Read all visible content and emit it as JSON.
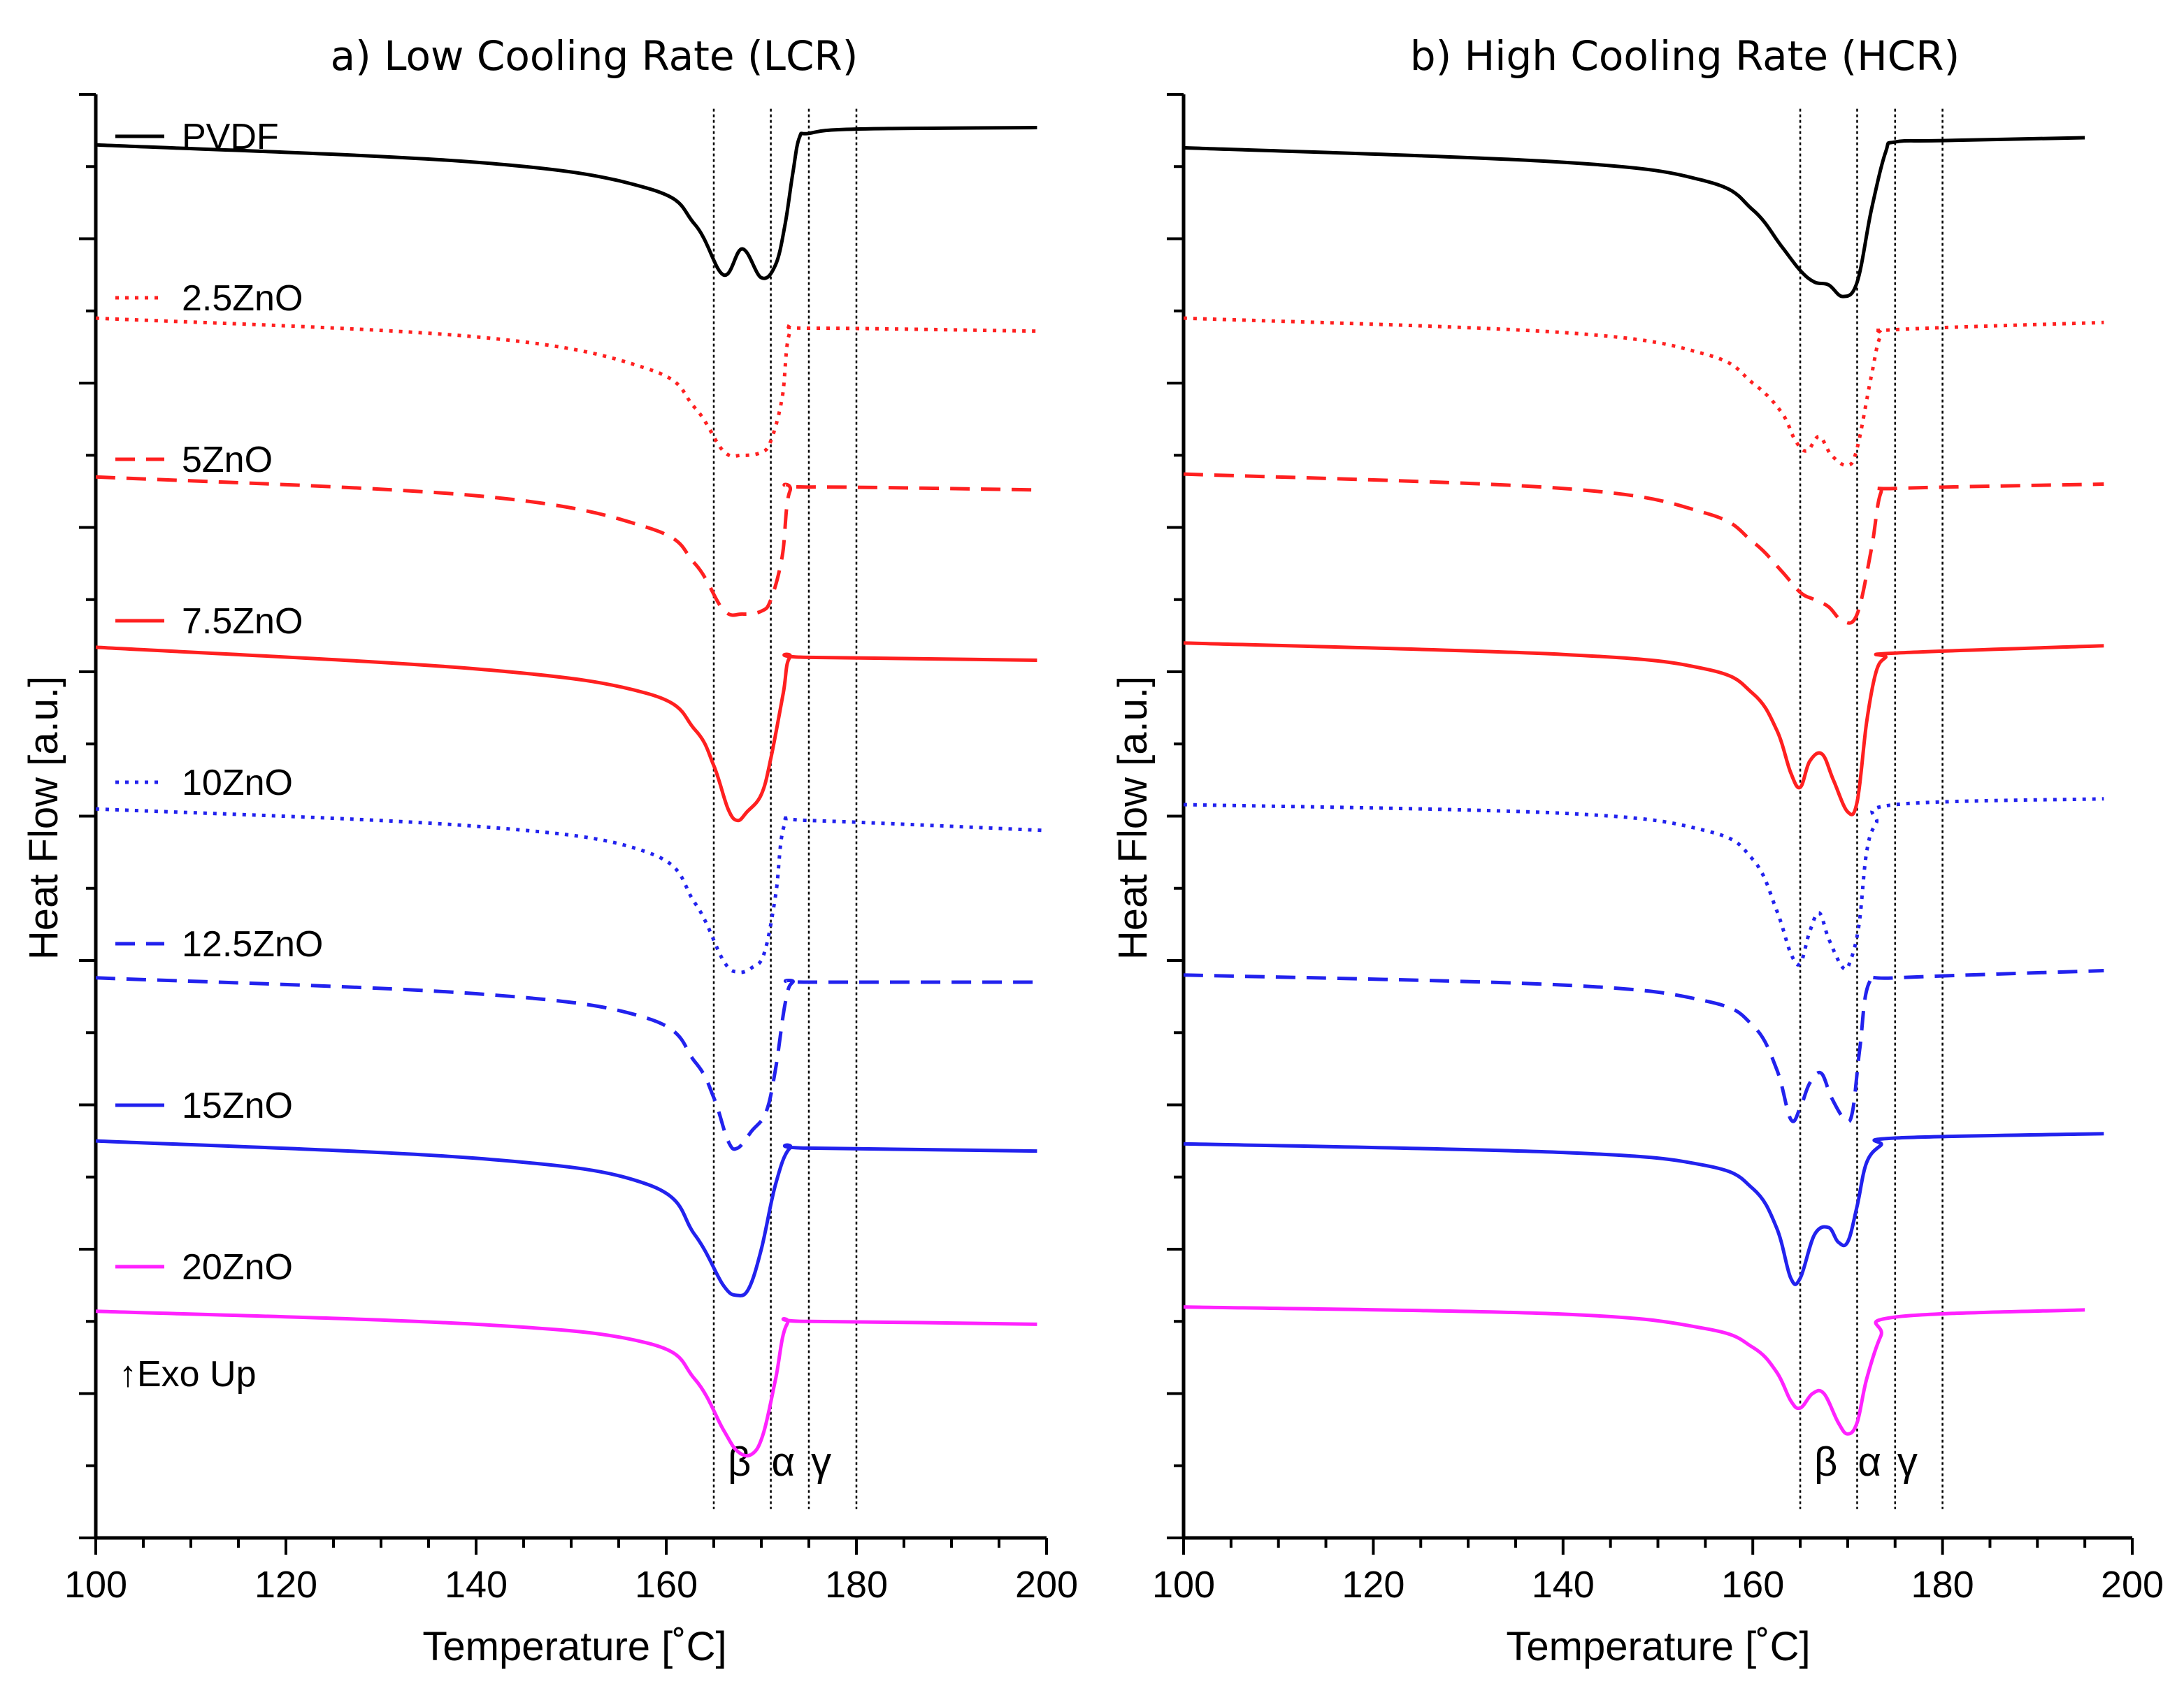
{
  "chart_data": [
    {
      "type": "line",
      "title": "a) Low Cooling Rate (LCR)",
      "xlabel": "Temperature [˚C]",
      "ylabel": "Heat Flow [a.u.]",
      "xlim": [
        100,
        200
      ],
      "ylim": [
        0,
        10
      ],
      "x_ticks": [
        100,
        120,
        140,
        160,
        180,
        200
      ],
      "x_tick_labels": [
        "100",
        "120",
        "140",
        "160",
        "180",
        "200"
      ],
      "y_tick_labels_shown": false,
      "grid": false,
      "annotation": "↑Exo Up",
      "reference_lines": [
        {
          "x": 165,
          "label": ""
        },
        {
          "x": 171,
          "label": ""
        },
        {
          "x": 175,
          "label": ""
        },
        {
          "x": 180,
          "label": ""
        }
      ],
      "phase_labels": [
        {
          "x": 167.7,
          "label": "β"
        },
        {
          "x": 172.3,
          "label": "α"
        },
        {
          "x": 176.3,
          "label": "γ"
        }
      ],
      "series": [
        {
          "name": "PVDF",
          "color": "#000000",
          "style": "solid",
          "end_x": 199,
          "x": [
            100,
            140,
            158,
            163,
            166,
            168,
            170,
            171.5,
            172.5,
            173.3,
            174,
            175,
            180,
            199
          ],
          "y": [
            9.65,
            9.53,
            9.35,
            9.1,
            8.75,
            8.93,
            8.73,
            8.82,
            9.1,
            9.45,
            9.7,
            9.73,
            9.76,
            9.77
          ]
        },
        {
          "name": "2.5ZnO",
          "color": "#ff2020",
          "style": "dotted",
          "end_x": 199,
          "x": [
            100,
            140,
            158,
            163,
            166,
            168,
            170,
            171,
            172.2,
            173,
            175,
            199
          ],
          "y": [
            8.45,
            8.32,
            8.1,
            7.83,
            7.53,
            7.5,
            7.52,
            7.6,
            7.9,
            8.35,
            8.38,
            8.36
          ]
        },
        {
          "name": "5ZnO",
          "color": "#ff2020",
          "style": "dashed",
          "end_x": 199,
          "x": [
            100,
            140,
            158,
            163,
            166,
            168,
            170,
            171,
            172.2,
            173,
            175,
            199
          ],
          "y": [
            7.35,
            7.22,
            7.0,
            6.75,
            6.43,
            6.4,
            6.42,
            6.5,
            6.8,
            7.25,
            7.28,
            7.26
          ]
        },
        {
          "name": "7.5ZnO",
          "color": "#ff2020",
          "style": "solid",
          "end_x": 199,
          "x": [
            100,
            140,
            158,
            163,
            165,
            166.5,
            167.5,
            168.5,
            170,
            171,
            172.3,
            173,
            175,
            199
          ],
          "y": [
            6.17,
            6.02,
            5.85,
            5.6,
            5.35,
            5.05,
            4.97,
            5.03,
            5.15,
            5.4,
            5.85,
            6.1,
            6.1,
            6.08
          ]
        },
        {
          "name": "10ZnO",
          "color": "#2222ee",
          "style": "dotted",
          "end_x": 200,
          "x": [
            100,
            140,
            158,
            163,
            166,
            167.5,
            169,
            170.3,
            171.5,
            172.5,
            175,
            200
          ],
          "y": [
            5.05,
            4.93,
            4.75,
            4.4,
            4.0,
            3.92,
            3.95,
            4.05,
            4.45,
            4.95,
            4.97,
            4.9
          ]
        },
        {
          "name": "12.5ZnO",
          "color": "#2222ee",
          "style": "dashed",
          "end_x": 199,
          "x": [
            100,
            140,
            158,
            163,
            165,
            166.5,
            167.5,
            169,
            170.5,
            171.5,
            172.5,
            173.3,
            175,
            199
          ],
          "y": [
            3.88,
            3.77,
            3.6,
            3.3,
            3.05,
            2.75,
            2.7,
            2.82,
            2.95,
            3.25,
            3.7,
            3.85,
            3.85,
            3.85
          ]
        },
        {
          "name": "15ZnO",
          "color": "#2222ee",
          "style": "solid",
          "end_x": 199,
          "x": [
            100,
            140,
            158,
            163,
            166,
            167.5,
            168.7,
            170,
            171.5,
            173,
            175,
            199
          ],
          "y": [
            2.75,
            2.63,
            2.45,
            2.1,
            1.75,
            1.68,
            1.73,
            2.0,
            2.45,
            2.7,
            2.7,
            2.68
          ]
        },
        {
          "name": "20ZnO",
          "color": "#ff22ff",
          "style": "solid",
          "end_x": 199,
          "x": [
            100,
            140,
            158,
            163,
            166,
            167.5,
            169,
            170.2,
            171.5,
            172.7,
            175,
            199
          ],
          "y": [
            1.57,
            1.48,
            1.35,
            1.1,
            0.75,
            0.6,
            0.58,
            0.72,
            1.1,
            1.48,
            1.5,
            1.48
          ]
        }
      ]
    },
    {
      "type": "line",
      "title": "b) High Cooling Rate (HCR)",
      "xlabel": "Temperature [˚C]",
      "ylabel": "Heat Flow  [a.u.]",
      "xlim": [
        100,
        200
      ],
      "ylim": [
        0,
        10
      ],
      "x_ticks": [
        100,
        120,
        140,
        160,
        180,
        200
      ],
      "x_tick_labels": [
        "100",
        "120",
        "140",
        "160",
        "180",
        "200"
      ],
      "y_tick_labels_shown": false,
      "grid": false,
      "reference_lines": [
        {
          "x": 165,
          "label": ""
        },
        {
          "x": 171,
          "label": ""
        },
        {
          "x": 175,
          "label": ""
        },
        {
          "x": 180,
          "label": ""
        }
      ],
      "phase_labels": [
        {
          "x": 167.7,
          "label": "β"
        },
        {
          "x": 172.3,
          "label": "α"
        },
        {
          "x": 176.3,
          "label": "γ"
        }
      ],
      "series": [
        {
          "name": "PVDF",
          "color": "#000000",
          "style": "solid",
          "end_x": 195,
          "x": [
            100,
            140,
            155,
            160,
            163,
            165,
            166.5,
            168,
            169.5,
            171,
            172.5,
            174,
            175,
            180,
            195
          ],
          "y": [
            9.63,
            9.53,
            9.4,
            9.2,
            8.95,
            8.78,
            8.7,
            8.68,
            8.6,
            8.7,
            9.2,
            9.6,
            9.67,
            9.68,
            9.7
          ]
        },
        {
          "name": "2.5ZnO",
          "color": "#ff2020",
          "style": "dotted",
          "end_x": 197,
          "x": [
            100,
            140,
            155,
            160,
            163,
            164.5,
            165.7,
            167,
            168.3,
            170,
            171,
            172.5,
            173.5,
            175,
            197
          ],
          "y": [
            8.45,
            8.35,
            8.2,
            8.0,
            7.8,
            7.6,
            7.53,
            7.63,
            7.5,
            7.43,
            7.55,
            8.05,
            8.33,
            8.37,
            8.42
          ]
        },
        {
          "name": "5ZnO",
          "color": "#ff2020",
          "style": "dashed",
          "end_x": 197,
          "x": [
            100,
            140,
            155,
            160,
            163,
            165,
            166.5,
            168,
            169.5,
            171,
            172.5,
            173.5,
            175,
            197
          ],
          "y": [
            7.37,
            7.27,
            7.1,
            6.9,
            6.7,
            6.55,
            6.5,
            6.45,
            6.35,
            6.4,
            6.85,
            7.24,
            7.27,
            7.3
          ]
        },
        {
          "name": "7.5ZnO",
          "color": "#ff2020",
          "style": "solid",
          "end_x": 197,
          "x": [
            100,
            140,
            155,
            160,
            162.5,
            164,
            165,
            166,
            167.3,
            168.5,
            170,
            171,
            172,
            173,
            174,
            175,
            197
          ],
          "y": [
            6.2,
            6.12,
            6.02,
            5.85,
            5.6,
            5.3,
            5.2,
            5.38,
            5.43,
            5.25,
            5.03,
            5.1,
            5.65,
            6.0,
            6.1,
            6.13,
            6.18
          ]
        },
        {
          "name": "10ZnO",
          "color": "#2222ee",
          "style": "dotted",
          "end_x": 197,
          "x": [
            100,
            140,
            155,
            160,
            162.5,
            164,
            165,
            166,
            167,
            168,
            169.5,
            170.3,
            171.2,
            172,
            173,
            175,
            197
          ],
          "y": [
            5.08,
            5.02,
            4.9,
            4.7,
            4.35,
            4.05,
            3.98,
            4.2,
            4.33,
            4.15,
            3.95,
            4.0,
            4.25,
            4.75,
            4.95,
            5.08,
            5.12
          ]
        },
        {
          "name": "12.5ZnO",
          "color": "#2222ee",
          "style": "dashed",
          "end_x": 197,
          "x": [
            100,
            140,
            155,
            160,
            162.5,
            164,
            165,
            166,
            167.2,
            168.3,
            169.7,
            170.5,
            171.3,
            172.3,
            175,
            197
          ],
          "y": [
            3.9,
            3.83,
            3.72,
            3.55,
            3.25,
            2.9,
            2.98,
            3.15,
            3.22,
            3.05,
            2.9,
            2.95,
            3.4,
            3.85,
            3.88,
            3.93
          ]
        },
        {
          "name": "15ZnO",
          "color": "#2222ee",
          "style": "solid",
          "end_x": 197,
          "x": [
            100,
            140,
            155,
            160,
            162.5,
            164,
            165,
            166.5,
            168,
            169,
            170,
            171,
            172,
            173.5,
            175,
            197
          ],
          "y": [
            2.73,
            2.67,
            2.58,
            2.42,
            2.15,
            1.8,
            1.8,
            2.1,
            2.15,
            2.05,
            2.05,
            2.3,
            2.6,
            2.72,
            2.77,
            2.8
          ]
        },
        {
          "name": "20ZnO",
          "color": "#ff22ff",
          "style": "solid",
          "end_x": 195,
          "x": [
            100,
            140,
            155,
            160,
            162.5,
            164,
            165,
            166.3,
            167.5,
            169,
            170,
            171,
            172,
            173.5,
            175,
            195
          ],
          "y": [
            1.6,
            1.55,
            1.45,
            1.32,
            1.15,
            0.95,
            0.9,
            1.0,
            1.0,
            0.8,
            0.72,
            0.8,
            1.1,
            1.4,
            1.53,
            1.58
          ]
        }
      ]
    }
  ]
}
